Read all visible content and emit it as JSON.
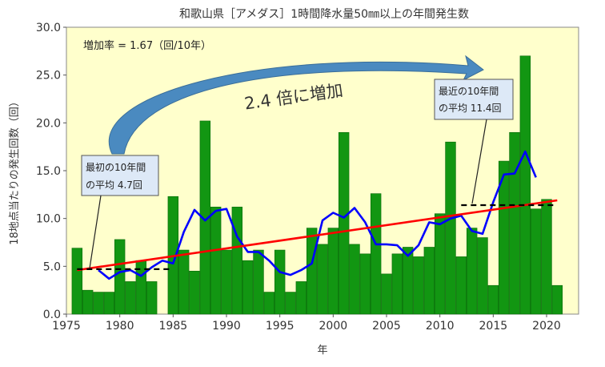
{
  "chart_data": {
    "type": "bar",
    "title": "和歌山県［アメダス］1時間降水量50㎜以上の年間発生数",
    "xlabel": "年",
    "ylabel": "18地点当たりの発生回数（回）",
    "xlim": [
      1975,
      2023
    ],
    "ylim": [
      0,
      30
    ],
    "xticks": [
      1975,
      1980,
      1985,
      1990,
      1995,
      2000,
      2005,
      2010,
      2015,
      2020
    ],
    "yticks": [
      0,
      5,
      10,
      15,
      20,
      25,
      30
    ],
    "ytick_labels": [
      "0.0",
      "5.0",
      "10.0",
      "15.0",
      "20.0",
      "25.0",
      "30.0"
    ],
    "xtick_labels": [
      "1975",
      "1980",
      "1985",
      "1990",
      "1995",
      "2000",
      "2005",
      "2010",
      "2015",
      "2020"
    ],
    "years": [
      1976,
      1977,
      1978,
      1979,
      1980,
      1981,
      1982,
      1983,
      1984,
      1985,
      1986,
      1987,
      1988,
      1989,
      1990,
      1991,
      1992,
      1993,
      1994,
      1995,
      1996,
      1997,
      1998,
      1999,
      2000,
      2001,
      2002,
      2003,
      2004,
      2005,
      2006,
      2007,
      2008,
      2009,
      2010,
      2011,
      2012,
      2013,
      2014,
      2015,
      2016,
      2017,
      2018,
      2019,
      2020,
      2021
    ],
    "values": [
      6.9,
      2.5,
      2.3,
      2.3,
      7.8,
      3.4,
      5.6,
      3.4,
      0,
      12.3,
      6.7,
      4.5,
      20.2,
      11.2,
      6.7,
      11.2,
      5.6,
      6.7,
      2.3,
      6.7,
      2.3,
      3.4,
      9.0,
      7.3,
      9.0,
      19.0,
      7.3,
      6.3,
      12.6,
      4.2,
      6.3,
      7.0,
      6.0,
      7.0,
      10.5,
      18.0,
      6.0,
      9.0,
      8.0,
      3.0,
      16.0,
      19.0,
      27.0,
      11.0,
      12.0,
      3.0
    ],
    "series": [
      {
        "type": "line",
        "color": "#0000ff",
        "x": [
          1978,
          1979,
          1980,
          1981,
          1982,
          1983,
          1984,
          1985,
          1986,
          1987,
          1988,
          1989,
          1990,
          1991,
          1992,
          1993,
          1994,
          1995,
          1996,
          1997,
          1998,
          1999,
          2000,
          2001,
          2002,
          2003,
          2004,
          2005,
          2006,
          2007,
          2008,
          2009,
          2010,
          2011,
          2012,
          2013,
          2014,
          2015,
          2016,
          2017,
          2018,
          2019
        ],
        "y": [
          4.6,
          3.7,
          4.4,
          4.6,
          4.0,
          4.9,
          5.6,
          5.3,
          8.6,
          10.9,
          9.8,
          10.8,
          11.0,
          8.1,
          6.5,
          6.5,
          5.6,
          4.4,
          4.1,
          4.6,
          5.3,
          9.8,
          10.6,
          10.1,
          11.1,
          9.6,
          7.3,
          7.3,
          7.2,
          6.1,
          7.2,
          9.6,
          9.4,
          10.0,
          10.3,
          8.7,
          8.4,
          11.7,
          14.6,
          14.7,
          17.0,
          14.3
        ]
      },
      {
        "type": "line",
        "color": "#ff0000",
        "x": [
          1976,
          2021
        ],
        "y": [
          4.6,
          11.9
        ]
      },
      {
        "type": "line",
        "color": "#000000",
        "dash": true,
        "x": [
          1976,
          1985
        ],
        "y": [
          4.7,
          4.7
        ]
      },
      {
        "type": "line",
        "color": "#000000",
        "dash": true,
        "x": [
          2012,
          2021
        ],
        "y": [
          11.4,
          11.4
        ]
      }
    ],
    "annotations": {
      "rate": "増加率 = 1.67（回/10年）",
      "increase": "2.4 倍に増加",
      "first_line1": "最初の10年間",
      "first_line2": "の平均 4.7回",
      "last_line1": "最近の10年間",
      "last_line2": "の平均 11.4回"
    },
    "colors": {
      "bar_fill": "#129612",
      "bar_stroke": "#0b6a0b",
      "plot_bg": "#ffffcc",
      "arrow_fill": "#4a8ac0"
    },
    "grid": false,
    "legend": "none"
  }
}
